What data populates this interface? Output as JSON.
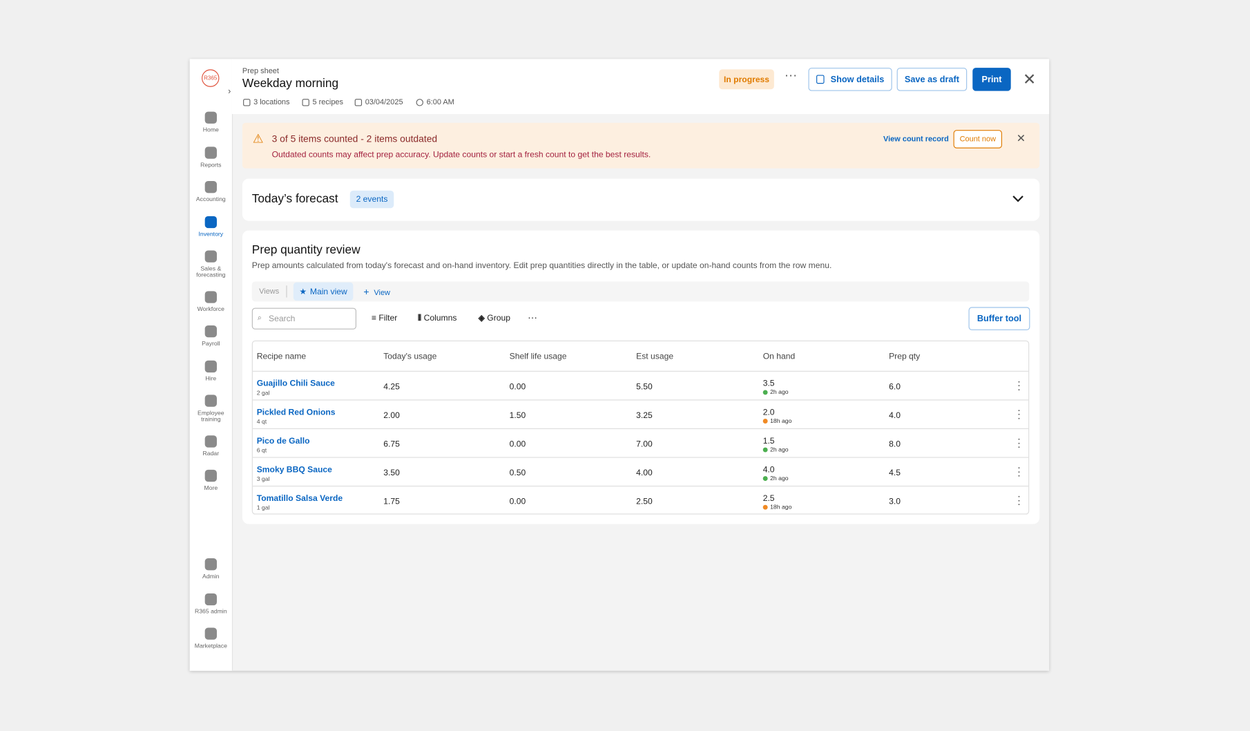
{
  "sidebar": {
    "logo": "R365",
    "items": [
      {
        "label": "Home"
      },
      {
        "label": "Reports"
      },
      {
        "label": "Accounting"
      },
      {
        "label": "Inventory",
        "active": true
      },
      {
        "label": "Sales & forecasting"
      },
      {
        "label": "Workforce"
      },
      {
        "label": "Payroll"
      },
      {
        "label": "Hire"
      },
      {
        "label": "Employee training"
      },
      {
        "label": "Radar"
      },
      {
        "label": "More"
      }
    ],
    "bottom_items": [
      {
        "label": "Admin"
      },
      {
        "label": "R365 admin"
      },
      {
        "label": "Marketplace"
      }
    ]
  },
  "header": {
    "eyebrow": "Prep sheet",
    "title": "Weekday morning",
    "meta": [
      "3 locations",
      "5 recipes",
      "03/04/2025",
      "6:00 AM"
    ],
    "status": "In progress",
    "buttons": [
      "Show details",
      "Save as draft",
      "Print"
    ]
  },
  "alert": {
    "title": "3 of 5 items counted - 2 items outdated",
    "message": "Outdated counts may affect prep accuracy. Update counts or start a fresh count to get the best results.",
    "link": "View count record",
    "button": "Count now"
  },
  "forecast": {
    "title": "Today’s forecast",
    "badge": "2 events"
  },
  "review": {
    "title": "Prep quantity review",
    "description": "Prep amounts calculated from today's forecast and on-hand inventory. Edit prep quantities directly in the table, or update on-hand counts from the row menu.",
    "views_label": "Views",
    "active_view": "Main view",
    "add_view": "View",
    "search_placeholder": "Search",
    "tools": [
      "Filter",
      "Columns",
      "Group"
    ],
    "buffer_button": "Buffer tool",
    "table": {
      "columns": [
        "Recipe name",
        "Today's usage",
        "Shelf life usage",
        "Est usage",
        "On hand",
        "Prep qty"
      ],
      "rows": [
        {
          "name": "Guajillo Chili Sauce",
          "unit": "2 gal",
          "today": "4.25",
          "shelf": "0.00",
          "est": "5.50",
          "on_hand": "3.5",
          "age": "2h ago",
          "dot": "#4caf50",
          "prep": "6.0"
        },
        {
          "name": "Pickled Red Onions",
          "unit": "4 qt",
          "today": "2.00",
          "shelf": "1.50",
          "est": "3.25",
          "on_hand": "2.0",
          "age": "18h ago",
          "dot": "#f08a24",
          "prep": "4.0"
        },
        {
          "name": "Pico de Gallo",
          "unit": "6 qt",
          "today": "6.75",
          "shelf": "0.00",
          "est": "7.00",
          "on_hand": "1.5",
          "age": "2h ago",
          "dot": "#4caf50",
          "prep": "8.0"
        },
        {
          "name": "Smoky BBQ Sauce",
          "unit": "3 gal",
          "today": "3.50",
          "shelf": "0.50",
          "est": "4.00",
          "on_hand": "4.0",
          "age": "2h ago",
          "dot": "#4caf50",
          "prep": "4.5"
        },
        {
          "name": "Tomatillo Salsa Verde",
          "unit": "1 gal",
          "today": "1.75",
          "shelf": "0.00",
          "est": "2.50",
          "on_hand": "2.5",
          "age": "18h ago",
          "dot": "#f08a24",
          "prep": "3.0"
        }
      ]
    }
  }
}
